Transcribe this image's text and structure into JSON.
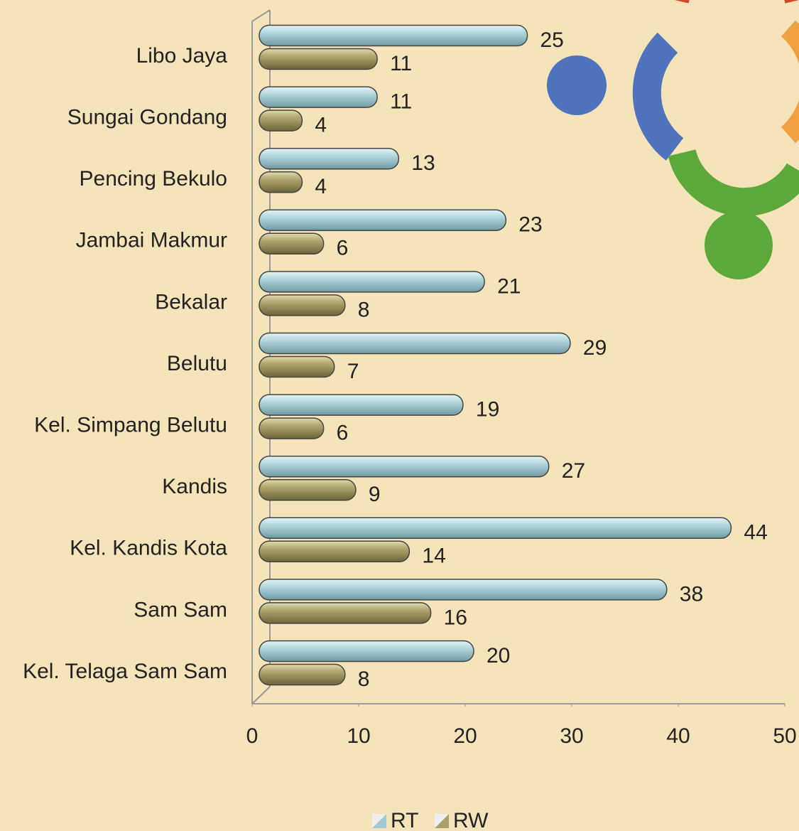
{
  "chart_data": {
    "type": "bar",
    "orientation": "horizontal",
    "categories": [
      "Libo Jaya",
      "Sungai Gondang",
      "Pencing Bekulo",
      "Jambai Makmur",
      "Bekalar",
      "Belutu",
      "Kel. Simpang Belutu",
      "Kandis",
      "Kel. Kandis Kota",
      "Sam Sam",
      "Kel. Telaga Sam Sam"
    ],
    "series": [
      {
        "name": "RT",
        "color": "#9ecbd3",
        "values": [
          25,
          11,
          13,
          23,
          21,
          29,
          19,
          27,
          44,
          38,
          20
        ]
      },
      {
        "name": "RW",
        "color": "#aaa06c",
        "values": [
          11,
          4,
          4,
          6,
          8,
          7,
          6,
          9,
          14,
          16,
          8
        ]
      }
    ],
    "xlim": [
      0,
      50
    ],
    "xticks": [
      0,
      10,
      20,
      30,
      40,
      50
    ],
    "legend": "bottom"
  }
}
